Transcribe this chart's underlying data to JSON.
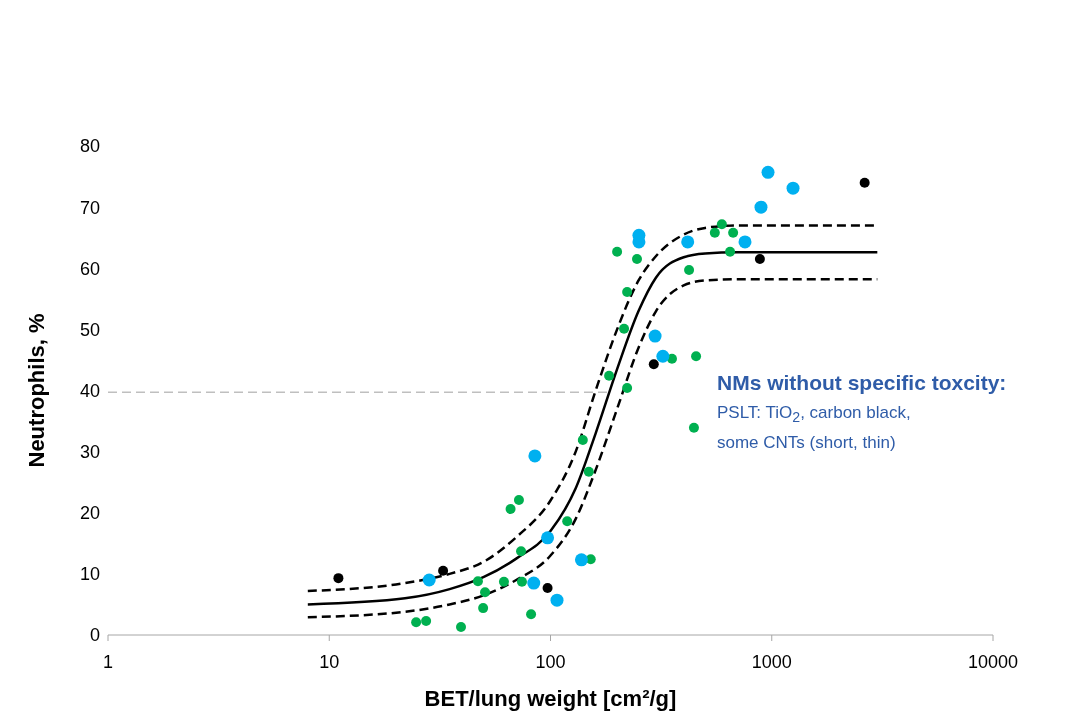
{
  "chart_data": {
    "type": "scatter",
    "xlabel": "BET/lung weight [cm²/g]",
    "ylabel": "Neutrophils, %",
    "log": "x",
    "xlim": [
      1,
      10000
    ],
    "xticks": [
      1,
      10,
      100,
      1000,
      10000
    ],
    "ylim": [
      0,
      80
    ],
    "yticks": [
      0,
      10,
      20,
      30,
      40,
      50,
      60,
      70,
      80
    ],
    "series": [
      {
        "marker": "circle",
        "color": "#00b050",
        "x": [
          24.7,
          27.4,
          39.4,
          47,
          50.6,
          49.6,
          61.6,
          74.3,
          73.6,
          66,
          72,
          81.7,
          119,
          152,
          149,
          140,
          184,
          222,
          215,
          222,
          200,
          246,
          354,
          455,
          445,
          423,
          595,
          553,
          669,
          648
        ],
        "values": [
          2.1,
          2.3,
          1.3,
          8.8,
          7.0,
          4.4,
          8.7,
          8.7,
          13.7,
          20.6,
          22.1,
          3.4,
          18.6,
          12.4,
          26.7,
          31.9,
          42.4,
          40.4,
          50.1,
          56.1,
          62.7,
          61.5,
          45.2,
          45.6,
          33.9,
          59.7,
          67.2,
          65.8,
          65.8,
          62.7
        ]
      },
      {
        "marker": "circle",
        "color": "#00b0f0",
        "x": [
          28.3,
          85,
          97,
          84,
          107,
          138,
          251,
          251,
          417,
          757,
          297,
          322,
          962,
          1248,
          894
        ],
        "values": [
          9.0,
          29.3,
          15.9,
          8.5,
          5.7,
          12.3,
          65.4,
          64.3,
          64.3,
          64.3,
          48.9,
          45.6,
          75.7,
          73.1,
          70.0
        ]
      },
      {
        "marker": "circle",
        "color": "#000000",
        "x": [
          11,
          32.7,
          97,
          293,
          884,
          2630
        ],
        "values": [
          9.3,
          10.5,
          7.7,
          44.3,
          61.5,
          74.0
        ]
      },
      {
        "type": "line",
        "marker": "none",
        "line_style": "solid",
        "color": "#000000",
        "x": [
          8,
          22,
          35,
          50,
          70,
          100,
          130,
          160,
          200,
          250,
          300,
          400,
          500,
          700,
          3000
        ],
        "values": [
          5.0,
          6.0,
          7.5,
          9.5,
          12.5,
          17,
          24,
          33,
          43.5,
          53,
          58.5,
          61.8,
          62.4,
          62.6,
          62.6
        ]
      },
      {
        "type": "line",
        "marker": "none",
        "line_style": "dashed",
        "color": "#000000",
        "x": [
          8,
          22,
          35,
          50,
          70,
          100,
          130,
          160,
          200,
          250,
          300,
          400,
          500,
          700,
          3000
        ],
        "values": [
          7.2,
          8.5,
          10,
          12,
          16,
          22,
          30,
          40,
          50,
          58,
          62,
          65.5,
          66.6,
          67,
          67
        ]
      },
      {
        "type": "line",
        "marker": "none",
        "line_style": "dashed",
        "color": "#000000",
        "x": [
          8,
          22,
          35,
          50,
          70,
          100,
          130,
          160,
          200,
          250,
          300,
          400,
          500,
          700,
          3000
        ],
        "values": [
          2.9,
          3.8,
          5,
          6.5,
          9,
          13,
          19,
          27,
          37,
          47,
          53,
          57.2,
          58,
          58.2,
          58.2
        ]
      }
    ],
    "ref_lines": [
      {
        "axis": "y",
        "value": 39.7,
        "color": "#bfbfbf",
        "line_style": "dashed"
      }
    ],
    "annotations": [
      "NMs without specific toxcity:",
      "PSLT: TiO$_{2}$, carbon black,",
      "some CNTs (short, thin)"
    ]
  }
}
